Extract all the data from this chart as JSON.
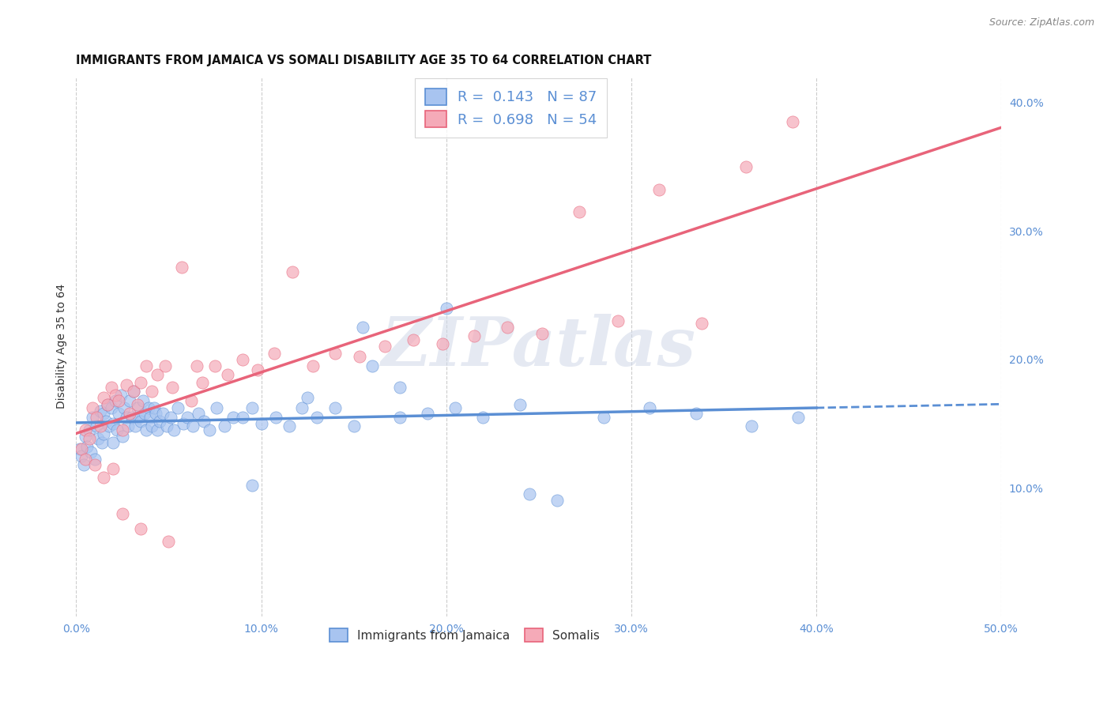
{
  "title": "IMMIGRANTS FROM JAMAICA VS SOMALI DISABILITY AGE 35 TO 64 CORRELATION CHART",
  "source": "Source: ZipAtlas.com",
  "ylabel": "Disability Age 35 to 64",
  "xlim": [
    0.0,
    0.5
  ],
  "ylim": [
    0.0,
    0.42
  ],
  "yticks_right": [
    0.1,
    0.2,
    0.3,
    0.4
  ],
  "yticklabels_right": [
    "10.0%",
    "20.0%",
    "30.0%",
    "40.0%"
  ],
  "jamaica_color": "#5b8fd4",
  "jamaica_color_fill": "#a8c4f0",
  "somali_color": "#e8647a",
  "somali_color_fill": "#f5aab8",
  "jamaica_R": 0.143,
  "jamaica_N": 87,
  "somali_R": 0.698,
  "somali_N": 54,
  "jamaica_scatter_x": [
    0.002,
    0.003,
    0.004,
    0.005,
    0.006,
    0.007,
    0.008,
    0.009,
    0.01,
    0.011,
    0.012,
    0.013,
    0.014,
    0.015,
    0.015,
    0.016,
    0.017,
    0.018,
    0.019,
    0.02,
    0.02,
    0.021,
    0.022,
    0.023,
    0.024,
    0.025,
    0.026,
    0.027,
    0.028,
    0.029,
    0.03,
    0.031,
    0.032,
    0.033,
    0.034,
    0.035,
    0.036,
    0.037,
    0.038,
    0.039,
    0.04,
    0.041,
    0.042,
    0.043,
    0.044,
    0.045,
    0.047,
    0.049,
    0.051,
    0.053,
    0.055,
    0.058,
    0.06,
    0.063,
    0.066,
    0.069,
    0.072,
    0.076,
    0.08,
    0.085,
    0.09,
    0.095,
    0.1,
    0.108,
    0.115,
    0.122,
    0.13,
    0.14,
    0.15,
    0.16,
    0.175,
    0.19,
    0.205,
    0.22,
    0.24,
    0.26,
    0.285,
    0.31,
    0.335,
    0.365,
    0.39,
    0.2,
    0.245,
    0.175,
    0.155,
    0.125,
    0.095
  ],
  "jamaica_scatter_y": [
    0.13,
    0.125,
    0.118,
    0.14,
    0.132,
    0.145,
    0.128,
    0.155,
    0.122,
    0.148,
    0.138,
    0.16,
    0.135,
    0.142,
    0.158,
    0.152,
    0.165,
    0.148,
    0.162,
    0.135,
    0.15,
    0.168,
    0.145,
    0.158,
    0.172,
    0.14,
    0.162,
    0.155,
    0.148,
    0.168,
    0.155,
    0.175,
    0.148,
    0.162,
    0.155,
    0.152,
    0.168,
    0.158,
    0.145,
    0.162,
    0.155,
    0.148,
    0.162,
    0.158,
    0.145,
    0.152,
    0.158,
    0.148,
    0.155,
    0.145,
    0.162,
    0.15,
    0.155,
    0.148,
    0.158,
    0.152,
    0.145,
    0.162,
    0.148,
    0.155,
    0.155,
    0.162,
    0.15,
    0.155,
    0.148,
    0.162,
    0.155,
    0.162,
    0.148,
    0.195,
    0.155,
    0.158,
    0.162,
    0.155,
    0.165,
    0.09,
    0.155,
    0.162,
    0.158,
    0.148,
    0.155,
    0.24,
    0.095,
    0.178,
    0.225,
    0.17,
    0.102
  ],
  "somali_scatter_x": [
    0.003,
    0.005,
    0.007,
    0.009,
    0.011,
    0.013,
    0.015,
    0.017,
    0.019,
    0.021,
    0.023,
    0.025,
    0.027,
    0.029,
    0.031,
    0.033,
    0.035,
    0.038,
    0.041,
    0.044,
    0.048,
    0.052,
    0.057,
    0.062,
    0.068,
    0.075,
    0.082,
    0.09,
    0.098,
    0.107,
    0.117,
    0.128,
    0.14,
    0.153,
    0.167,
    0.182,
    0.198,
    0.215,
    0.233,
    0.252,
    0.272,
    0.293,
    0.315,
    0.338,
    0.362,
    0.387,
    0.005,
    0.01,
    0.015,
    0.02,
    0.025,
    0.035,
    0.05,
    0.065
  ],
  "somali_scatter_y": [
    0.13,
    0.145,
    0.138,
    0.162,
    0.155,
    0.148,
    0.17,
    0.165,
    0.178,
    0.172,
    0.168,
    0.145,
    0.18,
    0.158,
    0.175,
    0.165,
    0.182,
    0.195,
    0.175,
    0.188,
    0.195,
    0.178,
    0.272,
    0.168,
    0.182,
    0.195,
    0.188,
    0.2,
    0.192,
    0.205,
    0.268,
    0.195,
    0.205,
    0.202,
    0.21,
    0.215,
    0.212,
    0.218,
    0.225,
    0.22,
    0.315,
    0.23,
    0.332,
    0.228,
    0.35,
    0.385,
    0.122,
    0.118,
    0.108,
    0.115,
    0.08,
    0.068,
    0.058,
    0.195
  ],
  "watermark_text": "ZIPatlas",
  "background_color": "#ffffff",
  "grid_color": "#cccccc",
  "title_fontsize": 10.5,
  "label_fontsize": 10,
  "tick_fontsize": 10,
  "legend_fontsize": 13
}
